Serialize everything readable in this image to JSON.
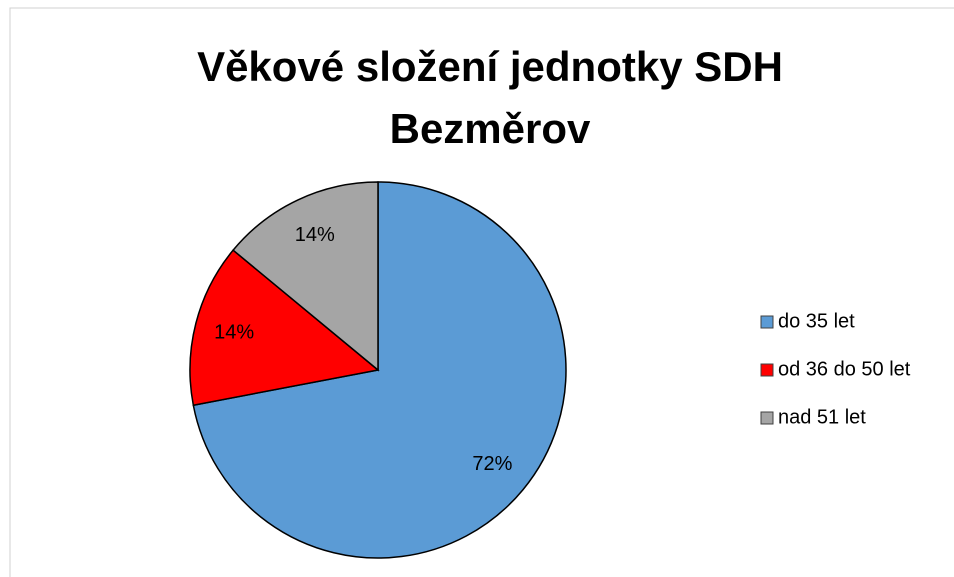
{
  "chart_data": {
    "type": "pie",
    "title": "Věkové složení jednotky SDH Bezměrov",
    "categories": [
      "do 35 let",
      "od 36 do 50 let",
      "nad 51 let"
    ],
    "values": [
      72,
      14,
      14
    ],
    "value_labels": [
      "72%",
      "14%",
      "14%"
    ],
    "colors": [
      "#5b9bd5",
      "#ff0000",
      "#a5a5a5"
    ],
    "legend": "right"
  }
}
